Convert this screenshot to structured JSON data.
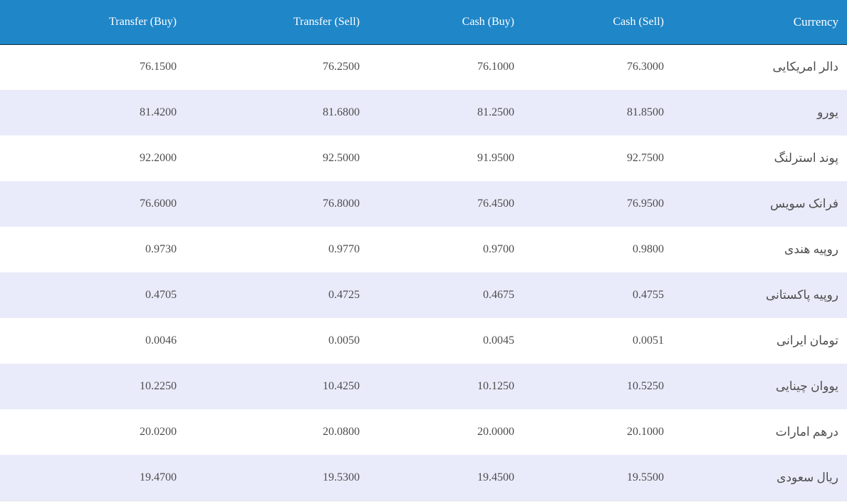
{
  "columns": {
    "transfer_buy": "Transfer (Buy)",
    "transfer_sell": "Transfer (Sell)",
    "cash_buy": "Cash (Buy)",
    "cash_sell": "Cash (Sell)",
    "currency": "Currency"
  },
  "rows": [
    {
      "transfer_buy": "76.1500",
      "transfer_sell": "76.2500",
      "cash_buy": "76.1000",
      "cash_sell": "76.3000",
      "currency": "دالر امریکایی"
    },
    {
      "transfer_buy": "81.4200",
      "transfer_sell": "81.6800",
      "cash_buy": "81.2500",
      "cash_sell": "81.8500",
      "currency": "یورو"
    },
    {
      "transfer_buy": "92.2000",
      "transfer_sell": "92.5000",
      "cash_buy": "91.9500",
      "cash_sell": "92.7500",
      "currency": "پوند استرلنگ"
    },
    {
      "transfer_buy": "76.6000",
      "transfer_sell": "76.8000",
      "cash_buy": "76.4500",
      "cash_sell": "76.9500",
      "currency": "فرانک سویس"
    },
    {
      "transfer_buy": "0.9730",
      "transfer_sell": "0.9770",
      "cash_buy": "0.9700",
      "cash_sell": "0.9800",
      "currency": "روپیه هندی"
    },
    {
      "transfer_buy": "0.4705",
      "transfer_sell": "0.4725",
      "cash_buy": "0.4675",
      "cash_sell": "0.4755",
      "currency": "روپیه پاکستانی"
    },
    {
      "transfer_buy": "0.0046",
      "transfer_sell": "0.0050",
      "cash_buy": "0.0045",
      "cash_sell": "0.0051",
      "currency": "تومان ایرانی"
    },
    {
      "transfer_buy": "10.2250",
      "transfer_sell": "10.4250",
      "cash_buy": "10.1250",
      "cash_sell": "10.5250",
      "currency": "یووان چینایی"
    },
    {
      "transfer_buy": "20.0200",
      "transfer_sell": "20.0800",
      "cash_buy": "20.0000",
      "cash_sell": "20.1000",
      "currency": "درهم امارات"
    },
    {
      "transfer_buy": "19.4700",
      "transfer_sell": "19.5300",
      "cash_buy": "19.4500",
      "cash_sell": "19.5500",
      "currency": "ریال سعودی"
    }
  ],
  "colors": {
    "header_bg": "#1f86c8",
    "header_text": "#ffffff",
    "row_alt_bg": "#e9ebfa",
    "row_bg": "#ffffff"
  }
}
